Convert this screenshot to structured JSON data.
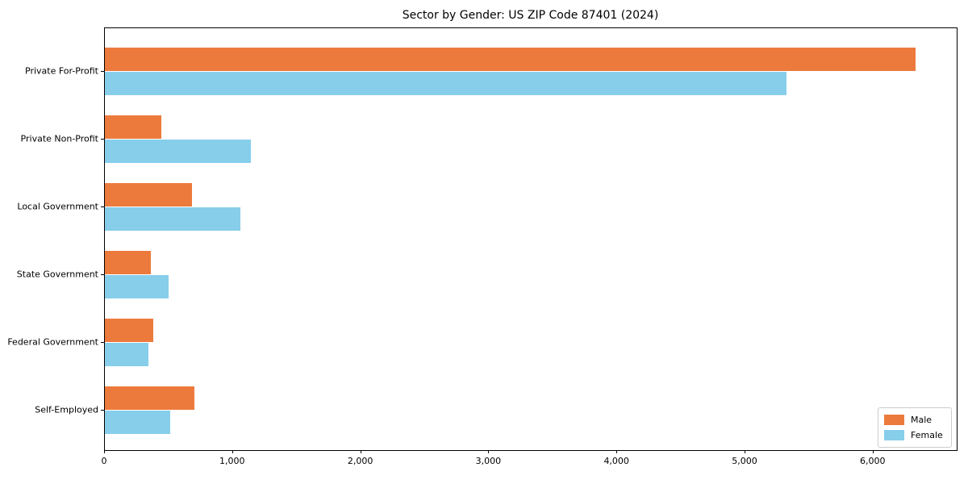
{
  "title": "Sector by Gender: US ZIP Code 87401 (2024)",
  "chart_data": {
    "type": "bar",
    "orientation": "horizontal",
    "title": "Sector by Gender: US ZIP Code 87401 (2024)",
    "xlabel": "",
    "ylabel": "",
    "categories": [
      "Private For-Profit",
      "Private Non-Profit",
      "Local Government",
      "State Government",
      "Federal Government",
      "Self-Employed"
    ],
    "series": [
      {
        "name": "Male",
        "color": "#EC7A3C",
        "values": [
          6330,
          440,
          680,
          360,
          380,
          700
        ]
      },
      {
        "name": "Female",
        "color": "#87CEEB",
        "values": [
          5320,
          1140,
          1060,
          500,
          340,
          510
        ]
      }
    ],
    "xlim": [
      0,
      6650
    ],
    "x_ticks": [
      0,
      1000,
      2000,
      3000,
      4000,
      5000,
      6000
    ],
    "x_tick_labels": [
      "0",
      "1,000",
      "2,000",
      "3,000",
      "4,000",
      "5,000",
      "6,000"
    ],
    "grid": false,
    "legend_position": "lower right"
  },
  "colors": {
    "male": "#EC7A3C",
    "female": "#87CEEB",
    "spine": "#000000",
    "legend_border": "#cccccc",
    "background": "#ffffff"
  }
}
